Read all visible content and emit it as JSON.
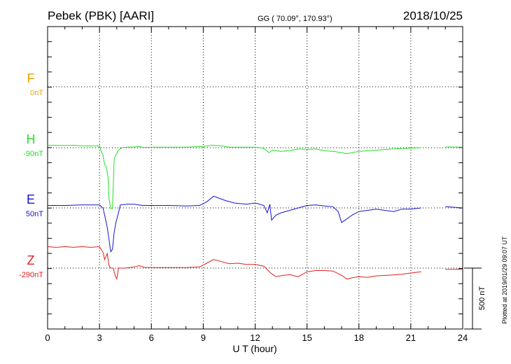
{
  "header": {
    "station": "Pebek (PBK)  [AARI]",
    "coords": "GG ( 70.09°, 170.93°)",
    "date": "2018/10/25"
  },
  "plotted_note": "Plotted at 2019/01/29 09:07 UT",
  "scale_bar_label": "500 nT",
  "chart_data": {
    "type": "line",
    "xlabel": "U T (hour)",
    "xlim": [
      0,
      24
    ],
    "xticks": [
      "0",
      "3",
      "6",
      "9",
      "12",
      "15",
      "18",
      "21",
      "24"
    ],
    "grid": true,
    "series": [
      {
        "name": "F",
        "baseline": "0nT",
        "color": "#f0a000",
        "points": []
      },
      {
        "name": "H",
        "baseline": "-90nT",
        "color": "#22e022",
        "points": [
          [
            0.0,
            20
          ],
          [
            0.5,
            20
          ],
          [
            1.0,
            18
          ],
          [
            1.5,
            20
          ],
          [
            2.0,
            16
          ],
          [
            2.5,
            14
          ],
          [
            3.0,
            16
          ],
          [
            3.1,
            -30
          ],
          [
            3.2,
            -60
          ],
          [
            3.3,
            -140
          ],
          [
            3.4,
            -160
          ],
          [
            3.5,
            -250
          ],
          [
            3.55,
            -420
          ],
          [
            3.65,
            -500
          ],
          [
            3.75,
            -500
          ],
          [
            3.8,
            -300
          ],
          [
            3.85,
            -90
          ],
          [
            3.95,
            -60
          ],
          [
            4.1,
            -20
          ],
          [
            4.3,
            0
          ],
          [
            4.6,
            4
          ],
          [
            5.0,
            6
          ],
          [
            5.3,
            10
          ],
          [
            5.5,
            2
          ],
          [
            6.0,
            4
          ],
          [
            7.0,
            4
          ],
          [
            8.0,
            4
          ],
          [
            9.0,
            10
          ],
          [
            9.5,
            20
          ],
          [
            10.0,
            16
          ],
          [
            10.5,
            4
          ],
          [
            11.0,
            4
          ],
          [
            12.0,
            4
          ],
          [
            12.5,
            -4
          ],
          [
            12.8,
            -40
          ],
          [
            13.0,
            -20
          ],
          [
            13.5,
            -30
          ],
          [
            14.0,
            -24
          ],
          [
            14.5,
            -10
          ],
          [
            15.0,
            -14
          ],
          [
            15.5,
            -10
          ],
          [
            16.0,
            -24
          ],
          [
            16.5,
            -30
          ],
          [
            17.0,
            -40
          ],
          [
            17.3,
            -50
          ],
          [
            17.6,
            -40
          ],
          [
            18.0,
            -30
          ],
          [
            19.0,
            -20
          ],
          [
            20.0,
            -10
          ],
          [
            21.0,
            -4
          ],
          [
            21.6,
            0
          ],
          [
            23.0,
            6
          ],
          [
            24.0,
            4
          ]
        ]
      },
      {
        "name": "E",
        "baseline": "50nT",
        "color": "#1414d0",
        "points": [
          [
            0.0,
            20
          ],
          [
            1.0,
            20
          ],
          [
            2.0,
            24
          ],
          [
            3.0,
            24
          ],
          [
            3.2,
            0
          ],
          [
            3.3,
            -60
          ],
          [
            3.45,
            -160
          ],
          [
            3.55,
            -260
          ],
          [
            3.65,
            -360
          ],
          [
            3.75,
            -340
          ],
          [
            3.85,
            -200
          ],
          [
            3.95,
            -120
          ],
          [
            4.1,
            -40
          ],
          [
            4.2,
            24
          ],
          [
            4.6,
            30
          ],
          [
            5.0,
            30
          ],
          [
            5.5,
            20
          ],
          [
            6.0,
            20
          ],
          [
            7.0,
            20
          ],
          [
            8.0,
            16
          ],
          [
            8.8,
            20
          ],
          [
            9.2,
            50
          ],
          [
            9.6,
            96
          ],
          [
            9.9,
            80
          ],
          [
            10.3,
            60
          ],
          [
            10.8,
            40
          ],
          [
            11.5,
            30
          ],
          [
            12.0,
            40
          ],
          [
            12.5,
            20
          ],
          [
            12.7,
            -40
          ],
          [
            12.85,
            30
          ],
          [
            12.95,
            -100
          ],
          [
            13.2,
            -60
          ],
          [
            13.5,
            -40
          ],
          [
            14.0,
            -20
          ],
          [
            14.5,
            0
          ],
          [
            15.0,
            20
          ],
          [
            15.5,
            24
          ],
          [
            16.0,
            16
          ],
          [
            16.5,
            10
          ],
          [
            16.8,
            -30
          ],
          [
            17.0,
            -120
          ],
          [
            17.3,
            -90
          ],
          [
            17.6,
            -60
          ],
          [
            18.0,
            -30
          ],
          [
            18.5,
            -20
          ],
          [
            19.0,
            -10
          ],
          [
            19.5,
            -20
          ],
          [
            20.0,
            -30
          ],
          [
            20.5,
            -10
          ],
          [
            21.0,
            -10
          ],
          [
            21.6,
            0
          ],
          [
            23.0,
            10
          ],
          [
            24.0,
            0
          ]
        ]
      },
      {
        "name": "Z",
        "baseline": "-290nT",
        "color": "#e01e1e",
        "points": [
          [
            0.0,
            176
          ],
          [
            0.5,
            170
          ],
          [
            1.0,
            176
          ],
          [
            1.5,
            170
          ],
          [
            2.0,
            176
          ],
          [
            2.5,
            170
          ],
          [
            3.0,
            176
          ],
          [
            3.2,
            130
          ],
          [
            3.3,
            70
          ],
          [
            3.45,
            120
          ],
          [
            3.55,
            20
          ],
          [
            3.65,
            0
          ],
          [
            3.8,
            0
          ],
          [
            3.9,
            -60
          ],
          [
            4.0,
            -90
          ],
          [
            4.1,
            0
          ],
          [
            4.5,
            0
          ],
          [
            5.0,
            10
          ],
          [
            5.3,
            20
          ],
          [
            5.6,
            6
          ],
          [
            6.0,
            4
          ],
          [
            7.0,
            4
          ],
          [
            8.0,
            4
          ],
          [
            8.8,
            10
          ],
          [
            9.2,
            40
          ],
          [
            9.6,
            70
          ],
          [
            10.0,
            56
          ],
          [
            10.5,
            36
          ],
          [
            11.0,
            40
          ],
          [
            11.5,
            30
          ],
          [
            12.0,
            30
          ],
          [
            12.5,
            16
          ],
          [
            12.9,
            -40
          ],
          [
            13.2,
            -70
          ],
          [
            13.6,
            -60
          ],
          [
            14.0,
            -54
          ],
          [
            14.5,
            -70
          ],
          [
            15.0,
            -30
          ],
          [
            15.5,
            -20
          ],
          [
            16.0,
            -20
          ],
          [
            16.5,
            -24
          ],
          [
            17.0,
            -60
          ],
          [
            17.3,
            -90
          ],
          [
            17.6,
            -80
          ],
          [
            18.0,
            -70
          ],
          [
            18.5,
            -76
          ],
          [
            19.0,
            -64
          ],
          [
            19.5,
            -60
          ],
          [
            20.0,
            -56
          ],
          [
            20.5,
            -50
          ],
          [
            21.0,
            -40
          ],
          [
            21.6,
            -30
          ],
          [
            23.0,
            -10
          ],
          [
            24.0,
            -10
          ]
        ]
      }
    ]
  }
}
